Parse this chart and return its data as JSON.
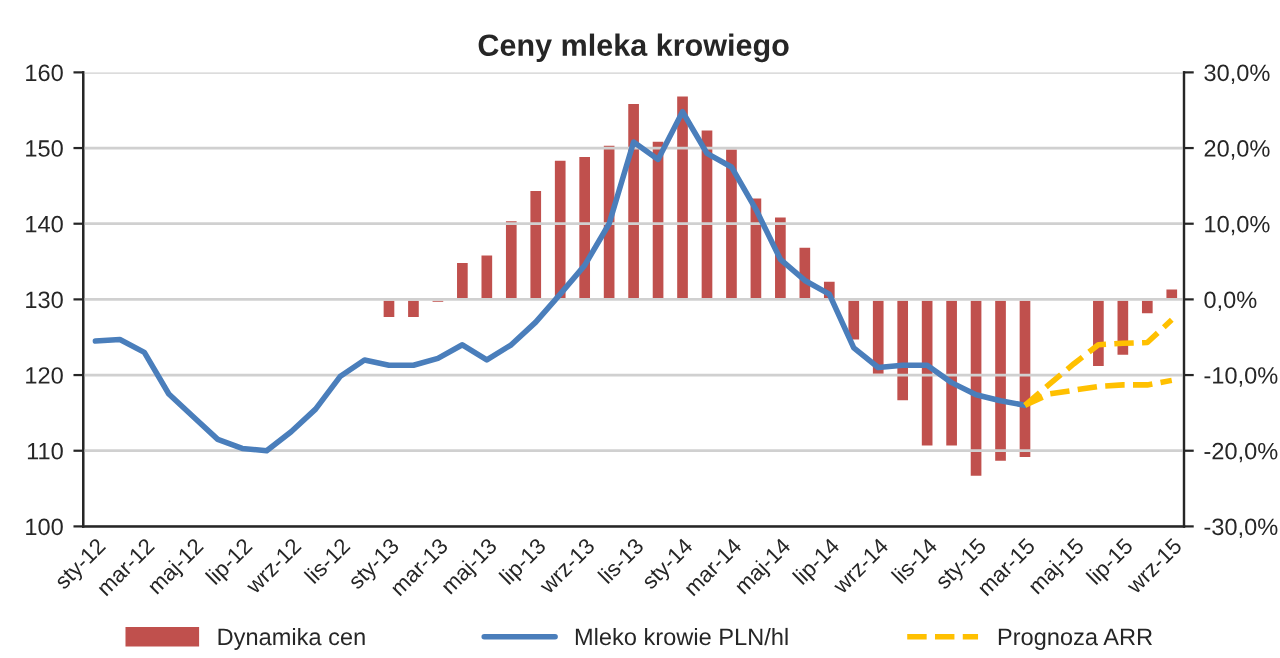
{
  "chart_data": {
    "type": "bar",
    "title": "Ceny mleka krowiego",
    "categories": [
      "sty-12",
      null,
      "mar-12",
      null,
      "maj-12",
      null,
      "lip-12",
      null,
      "wrz-12",
      null,
      "lis-12",
      null,
      "sty-13",
      null,
      "mar-13",
      null,
      "maj-13",
      null,
      "lip-13",
      null,
      "wrz-13",
      null,
      "lis-13",
      null,
      "sty-14",
      null,
      "mar-14",
      null,
      "maj-14",
      null,
      "lip-14",
      null,
      "wrz-14",
      null,
      "lis-14",
      null,
      "sty-15",
      null,
      "mar-15",
      null,
      "maj-15",
      null,
      "lip-15",
      null,
      "wrz-15"
    ],
    "series": [
      {
        "name": "Dynamika cen",
        "axis": "y2",
        "color": "#c0504d",
        "values": [
          null,
          null,
          null,
          null,
          null,
          null,
          null,
          null,
          null,
          null,
          null,
          null,
          -2.5,
          -2.5,
          -0.5,
          5,
          6,
          10.5,
          14.5,
          18.5,
          19,
          20.5,
          26,
          21,
          27,
          22.5,
          20,
          13.5,
          11,
          7,
          2.5,
          -5.5,
          -10,
          -13.5,
          -19.5,
          -19.5,
          -23.5,
          -21.5,
          -21,
          null,
          null,
          -9,
          -7.5,
          -2,
          1.5
        ]
      },
      {
        "name": "Mleko krowie PLN/hl",
        "type": "line",
        "axis": "y",
        "color": "#4a7ebb",
        "line_style": "solid",
        "values": [
          124.5,
          124.7,
          123,
          117.5,
          114.5,
          111.5,
          110.3,
          110,
          112.5,
          115.5,
          119.8,
          122,
          121.3,
          121.3,
          122.2,
          124,
          122,
          124,
          127,
          130.7,
          134.5,
          140,
          150.8,
          148.5,
          154.8,
          149.3,
          147.5,
          141.9,
          135.3,
          132.5,
          130.7,
          123.6,
          121,
          121.3,
          121.3,
          119,
          117.4,
          116.6,
          116,
          null,
          null,
          null,
          null,
          null,
          null
        ]
      },
      {
        "name": "Prognoza ARR",
        "type": "line",
        "axis": "y",
        "color": "#ffc000",
        "line_style": "dashed",
        "values": [
          null,
          null,
          null,
          null,
          null,
          null,
          null,
          null,
          null,
          null,
          null,
          null,
          null,
          null,
          null,
          null,
          null,
          null,
          null,
          null,
          null,
          null,
          null,
          null,
          null,
          null,
          null,
          null,
          null,
          null,
          null,
          null,
          null,
          null,
          null,
          null,
          null,
          null,
          116,
          118.8,
          121.5,
          124,
          124.2,
          124.3,
          127.3
        ]
      },
      {
        "type": "line",
        "axis": "y",
        "color": "#ffc000",
        "line_style": "dashed",
        "values": [
          null,
          null,
          null,
          null,
          null,
          null,
          null,
          null,
          null,
          null,
          null,
          null,
          null,
          null,
          null,
          null,
          null,
          null,
          null,
          null,
          null,
          null,
          null,
          null,
          null,
          null,
          null,
          null,
          null,
          null,
          null,
          null,
          null,
          null,
          null,
          null,
          null,
          null,
          116,
          117.5,
          118,
          118.5,
          118.7,
          118.7,
          119.3
        ]
      }
    ],
    "ylim": [
      100,
      160
    ],
    "yticks": [
      100,
      110,
      120,
      130,
      140,
      150,
      160
    ],
    "y2lim": [
      -30,
      30
    ],
    "y2ticks": [
      {
        "value": -30,
        "label": "-30,0%"
      },
      {
        "value": -20,
        "label": "-20,0%"
      },
      {
        "value": -10,
        "label": "-10,0%"
      },
      {
        "value": 0,
        "label": "0,0%"
      },
      {
        "value": 10,
        "label": "10,0%"
      },
      {
        "value": 20,
        "label": "20,0%"
      },
      {
        "value": 30,
        "label": "30,0%"
      }
    ],
    "grid": "y",
    "legend": "bottom"
  }
}
